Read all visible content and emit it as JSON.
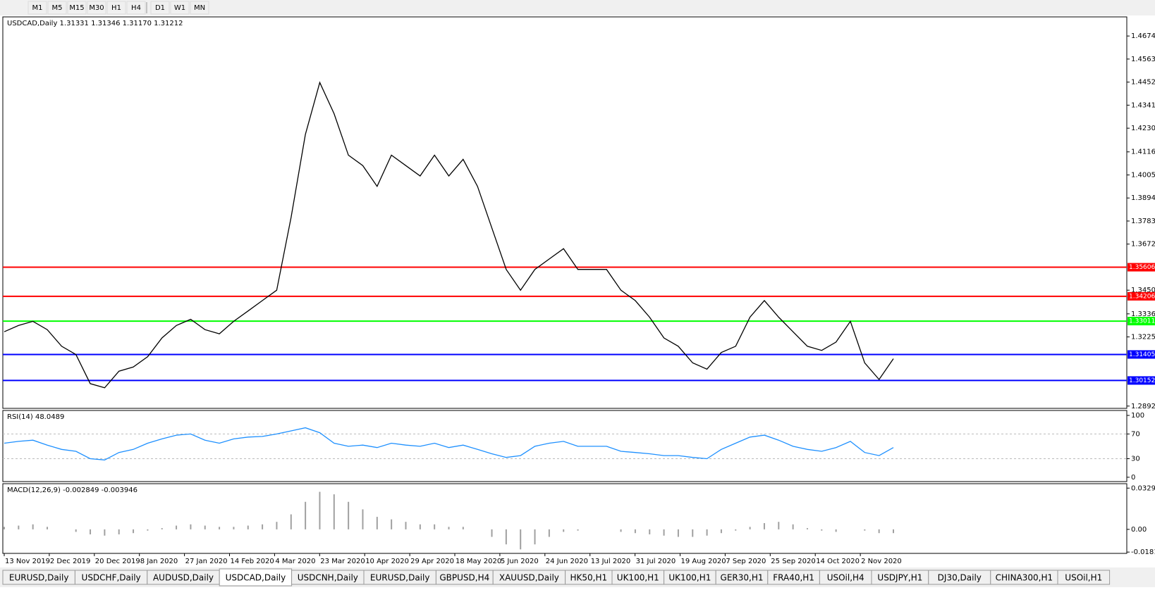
{
  "toolbar": {
    "timeframes": [
      "M1",
      "M5",
      "M15",
      "M30",
      "H1",
      "H4",
      "D1",
      "W1",
      "MN"
    ]
  },
  "tabs": [
    "EURUSD,Daily",
    "USDCHF,Daily",
    "AUDUSD,Daily",
    "USDCAD,Daily",
    "USDCNH,Daily",
    "EURUSD,Daily",
    "GBPUSD,H4",
    "XAUUSD,Daily",
    "HK50,H1",
    "UK100,H1",
    "UK100,H1",
    "GER30,H1",
    "FRA40,H1",
    "USOil,H4",
    "USDJPY,H1",
    "DJ30,Daily",
    "CHINA300,H1",
    "USOil,H1"
  ],
  "active_tab": 3,
  "chart_data": [
    {
      "type": "line",
      "title": "USDCAD,Daily  1.31331 1.31346 1.31170 1.31212",
      "color": "#000000",
      "values": [
        1.325,
        1.328,
        1.33,
        1.326,
        1.318,
        1.314,
        1.3,
        1.298,
        1.306,
        1.308,
        1.313,
        1.322,
        1.328,
        1.331,
        1.326,
        1.324,
        1.33,
        1.335,
        1.34,
        1.345,
        1.38,
        1.42,
        1.445,
        1.43,
        1.41,
        1.405,
        1.395,
        1.41,
        1.405,
        1.4,
        1.41,
        1.4,
        1.408,
        1.395,
        1.375,
        1.355,
        1.345,
        1.355,
        1.36,
        1.365,
        1.355,
        1.355,
        1.355,
        1.345,
        1.34,
        1.332,
        1.322,
        1.318,
        1.31,
        1.307,
        1.315,
        1.318,
        1.332,
        1.34,
        1.332,
        1.325,
        1.318,
        1.316,
        1.32,
        1.33,
        1.31,
        1.302,
        1.312
      ],
      "date_labels": [
        "13 Nov 2019",
        "2 Dec 2019",
        "20 Dec 2019",
        "8 Jan 2020",
        "27 Jan 2020",
        "14 Feb 2020",
        "4 Mar 2020",
        "23 Mar 2020",
        "10 Apr 2020",
        "29 Apr 2020",
        "18 May 2020",
        "5 Jun 2020",
        "24 Jun 2020",
        "13 Jul 2020",
        "31 Jul 2020",
        "19 Aug 2020",
        "7 Sep 2020",
        "25 Sep 2020",
        "14 Oct 2020",
        "2 Nov 2020"
      ],
      "ylim": [
        1.2881,
        1.4766
      ],
      "yticks": [
        {
          "value": 1.4674,
          "label": "1.46740"
        },
        {
          "value": 1.4563,
          "label": "1.45630"
        },
        {
          "value": 1.4452,
          "label": "1.44520"
        },
        {
          "value": 1.4341,
          "label": "1.43410"
        },
        {
          "value": 1.423,
          "label": "1.42300"
        },
        {
          "value": 1.4116,
          "label": "1.41160"
        },
        {
          "value": 1.4005,
          "label": "1.40050"
        },
        {
          "value": 1.3894,
          "label": "1.38940"
        },
        {
          "value": 1.3783,
          "label": "1.37830"
        },
        {
          "value": 1.3672,
          "label": "1.36720"
        },
        {
          "value": 1.345,
          "label": "1.34500"
        },
        {
          "value": 1.3336,
          "label": "1.33360"
        },
        {
          "value": 1.3225,
          "label": "1.32250"
        },
        {
          "value": 1.2892,
          "label": "1.28920"
        }
      ],
      "levels": [
        {
          "value": 1.35606,
          "label": "1.35606",
          "color": "#ff0000"
        },
        {
          "value": 1.34206,
          "label": "1.34206",
          "color": "#ff0000"
        },
        {
          "value": 1.33011,
          "label": "1.33011",
          "color": "#00ff00"
        },
        {
          "value": 1.31405,
          "label": "1.31405",
          "color": "#0000ff"
        },
        {
          "value": 1.30152,
          "label": "1.30152",
          "color": "#0000ff"
        }
      ]
    },
    {
      "type": "line",
      "title": "RSI(14) 48.0489",
      "color": "#1e90ff",
      "values": [
        55,
        58,
        60,
        52,
        45,
        42,
        30,
        28,
        40,
        45,
        55,
        62,
        68,
        70,
        60,
        55,
        62,
        65,
        66,
        70,
        75,
        80,
        72,
        55,
        50,
        52,
        48,
        55,
        52,
        50,
        55,
        48,
        52,
        45,
        38,
        32,
        35,
        50,
        55,
        58,
        50,
        50,
        50,
        42,
        40,
        38,
        35,
        35,
        32,
        30,
        45,
        55,
        65,
        68,
        60,
        50,
        45,
        42,
        48,
        58,
        40,
        35,
        48
      ],
      "ylim": [
        -7,
        108
      ],
      "yticks": [
        100,
        70,
        30,
        0
      ]
    },
    {
      "type": "bar",
      "title": "MACD(12,26,9) -0.002849 -0.003946",
      "color": "#a0a0a0",
      "values": [
        0.002,
        0.003,
        0.004,
        0.002,
        0,
        -0.002,
        -0.004,
        -0.005,
        -0.004,
        -0.003,
        -0.001,
        0.001,
        0.003,
        0.004,
        0.003,
        0.002,
        0.002,
        0.003,
        0.004,
        0.006,
        0.012,
        0.022,
        0.03,
        0.028,
        0.022,
        0.016,
        0.01,
        0.008,
        0.006,
        0.004,
        0.004,
        0.002,
        0.002,
        0,
        -0.006,
        -0.012,
        -0.016,
        -0.012,
        -0.006,
        -0.002,
        -0.001,
        0,
        0,
        -0.002,
        -0.003,
        -0.004,
        -0.005,
        -0.006,
        -0.006,
        -0.005,
        -0.003,
        -0.001,
        0.002,
        0.005,
        0.006,
        0.004,
        0.001,
        -0.001,
        -0.002,
        0,
        -0.001,
        -0.003,
        -0.003
      ],
      "ylim": [
        -0.0192,
        0.0365
      ],
      "yticks": [
        0.032972,
        {
          "value": 0,
          "label": "0.00"
        },
        -0.01815
      ]
    }
  ]
}
